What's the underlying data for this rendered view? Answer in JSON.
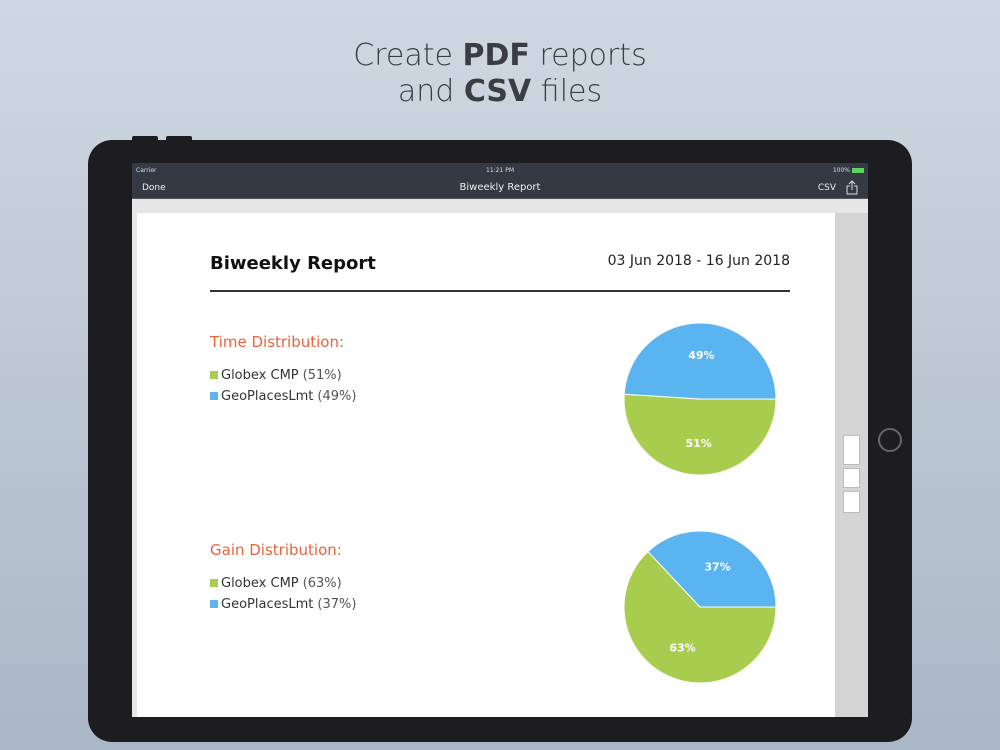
{
  "headline": {
    "line1_pre": "Create ",
    "line1_bold": "PDF",
    "line1_post": " reports",
    "line2_pre": "and ",
    "line2_bold": "CSV",
    "line2_post": " files"
  },
  "status": {
    "carrier": "Carrier",
    "time": "11:21 PM",
    "battery": "100%"
  },
  "nav": {
    "done": "Done",
    "title": "Biweekly Report",
    "csv": "CSV"
  },
  "report": {
    "title": "Biweekly Report",
    "date_range": "03 Jun 2018 - 16 Jun 2018"
  },
  "colors": {
    "green": "#a8cd4e",
    "blue": "#5ab4ef",
    "accent": "#e8643a"
  },
  "chart_data": [
    {
      "type": "pie",
      "title": "Time Distribution:",
      "slices": [
        {
          "name": "Globex CMP",
          "value": 51,
          "label": "(51%)",
          "pie_label": "51%"
        },
        {
          "name": "GeoPlacesLmt",
          "value": 49,
          "label": "(49%)",
          "pie_label": "49%"
        }
      ]
    },
    {
      "type": "pie",
      "title": "Gain Distribution:",
      "slices": [
        {
          "name": "Globex CMP",
          "value": 63,
          "label": "(63%)",
          "pie_label": "63%"
        },
        {
          "name": "GeoPlacesLmt",
          "value": 37,
          "label": "(37%)",
          "pie_label": "37%"
        }
      ]
    }
  ]
}
